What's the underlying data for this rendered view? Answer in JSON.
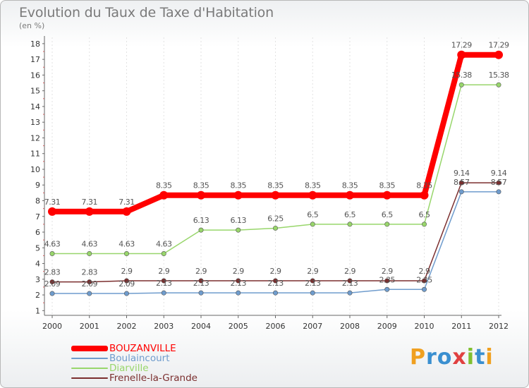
{
  "title": "Evolution du Taux de Taxe d'Habitation",
  "subtitle": "(en %)",
  "logo": {
    "letters": [
      "P",
      "r",
      "o",
      "x",
      "i",
      "t",
      "i"
    ],
    "colors": [
      "#f0a020",
      "#3a8fd0",
      "#3a8fd0",
      "#e04040",
      "#80c030",
      "#3a8fd0",
      "#f0a020"
    ]
  },
  "legend": [
    {
      "label": "BOUZANVILLE",
      "color": "#ff0000"
    },
    {
      "label": "Boulaincourt",
      "color": "#6f9ccd"
    },
    {
      "label": "Diarville",
      "color": "#98d66b"
    },
    {
      "label": "Frenelle-la-Grande",
      "color": "#7b2e2e"
    }
  ],
  "chart_data": {
    "type": "line",
    "title": "Evolution du Taux de Taxe d'Habitation",
    "ylabel": "(en %)",
    "categories": [
      "2000",
      "2001",
      "2002",
      "2003",
      "2004",
      "2005",
      "2006",
      "2007",
      "2008",
      "2009",
      "2010",
      "2011",
      "2012"
    ],
    "yticks": [
      1,
      2,
      3,
      4,
      5,
      6,
      7,
      8,
      9,
      10,
      11,
      12,
      13,
      14,
      15,
      16,
      17,
      18
    ],
    "ylim": [
      0.7,
      18.4
    ],
    "series": [
      {
        "name": "BOUZANVILLE",
        "color": "#ff0000",
        "values": [
          7.31,
          7.31,
          7.31,
          8.35,
          8.35,
          8.35,
          8.35,
          8.35,
          8.35,
          8.35,
          8.35,
          17.29,
          17.29
        ],
        "labels": [
          "7.31",
          "7.31",
          "7.31",
          "8.35",
          "8.35",
          "8.35",
          "8.35",
          "8.35",
          "8.35",
          "8.35",
          "8.35",
          "17.29",
          "17.29"
        ]
      },
      {
        "name": "Boulaincourt",
        "color": "#6f9ccd",
        "values": [
          2.09,
          2.09,
          2.09,
          2.13,
          2.13,
          2.13,
          2.13,
          2.13,
          2.13,
          2.35,
          2.35,
          8.57,
          8.57
        ],
        "labels": [
          "2.09",
          "2.09",
          "2.09",
          "2.13",
          "2.13",
          "2.13",
          "2.13",
          "2.13",
          "2.13",
          "2.35",
          "2.35",
          "8.57",
          "8.57"
        ]
      },
      {
        "name": "Diarville",
        "color": "#98d66b",
        "values": [
          4.63,
          4.63,
          4.63,
          4.63,
          6.13,
          6.13,
          6.25,
          6.5,
          6.5,
          6.5,
          6.5,
          15.38,
          15.38
        ],
        "labels": [
          "4.63",
          "4.63",
          "4.63",
          "4.63",
          "6.13",
          "6.13",
          "6.25",
          "6.5",
          "6.5",
          "6.5",
          "6.5",
          "15.38",
          "15.38"
        ]
      },
      {
        "name": "Frenelle-la-Grande",
        "color": "#7b2e2e",
        "values": [
          2.83,
          2.83,
          2.9,
          2.9,
          2.9,
          2.9,
          2.9,
          2.9,
          2.9,
          2.9,
          2.9,
          9.14,
          9.14
        ],
        "labels": [
          "2.83",
          "2.83",
          "2.9",
          "2.9",
          "2.9",
          "2.9",
          "2.9",
          "2.9",
          "2.9",
          "2.9",
          "2.9",
          "9.14",
          "9.14"
        ]
      }
    ]
  }
}
